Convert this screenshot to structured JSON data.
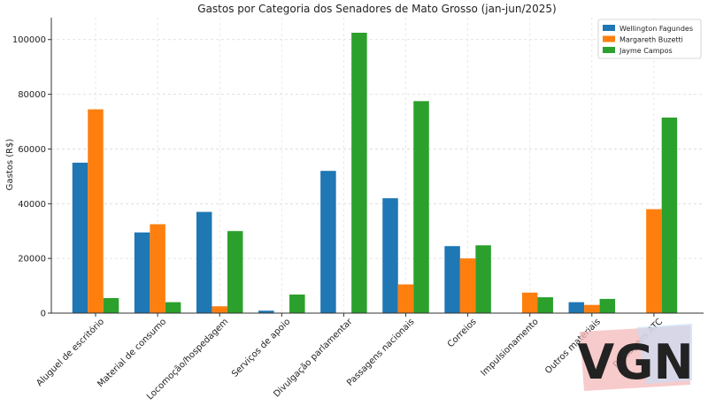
{
  "chart_data": {
    "type": "bar",
    "title": "Gastos por Categoria dos Senadores de Mato Grosso (jan-jun/2025)",
    "xlabel": "",
    "ylabel": "Gastos (R$)",
    "ylim": [
      0,
      108000
    ],
    "yticks": [
      0,
      20000,
      40000,
      60000,
      80000,
      100000
    ],
    "ytick_labels": [
      "0",
      "20000",
      "40000",
      "60000",
      "80000",
      "100000"
    ],
    "grid": true,
    "legend_position": "top-right",
    "categories": [
      "Aluguel de escritório",
      "Material de consumo",
      "Locomoção/hospedagem",
      "Serviços de apoio",
      "Divulgação parlamentar",
      "Passagens nacionais",
      "Correios",
      "Impulsionamento",
      "Outros materiais",
      "Passagens ATC"
    ],
    "series": [
      {
        "name": "Wellington Fagundes",
        "color": "#1f77b4",
        "values": [
          55000,
          29500,
          37000,
          900,
          52000,
          42000,
          24500,
          0,
          4000,
          0
        ]
      },
      {
        "name": "Margareth Buzetti",
        "color": "#ff7f0e",
        "values": [
          74500,
          32500,
          2500,
          0,
          0,
          10500,
          20000,
          7500,
          3000,
          38000
        ]
      },
      {
        "name": "Jayme Campos",
        "color": "#2ca02c",
        "values": [
          5500,
          4000,
          30000,
          6800,
          102500,
          77500,
          24800,
          5800,
          5200,
          71500
        ]
      }
    ]
  },
  "watermark": {
    "text": "VGN",
    "colors": {
      "red": "#f4b9b9",
      "blue": "#c9dcf3"
    }
  }
}
